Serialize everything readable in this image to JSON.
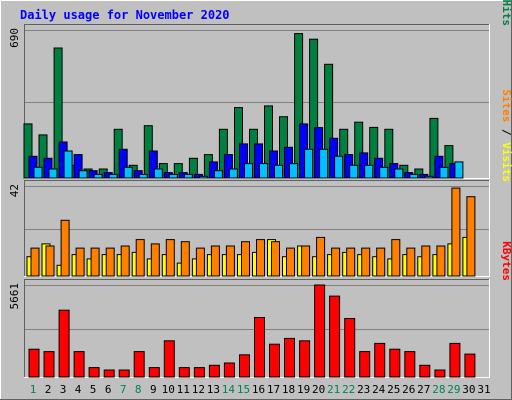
{
  "title": "Daily usage for November 2020",
  "colors": {
    "background": "#c0c0c0",
    "title": "#0000ff",
    "grid": "#808080",
    "hits": "#008040",
    "files": "#0000ff",
    "pages": "#00c0ff",
    "visits": "#ffff00",
    "sites": "#ff8000",
    "kbytes": "#ff0000",
    "weekend_label": "#00805c",
    "weekday_label": "#000000"
  },
  "chart_data": [
    {
      "type": "bar",
      "title": "",
      "ylabel": "Pages / Files / Hits",
      "ymax_label": "690",
      "ylim": [
        0,
        690
      ],
      "categories": [
        "1",
        "2",
        "3",
        "4",
        "5",
        "6",
        "7",
        "8",
        "9",
        "10",
        "11",
        "12",
        "13",
        "14",
        "15",
        "16",
        "17",
        "18",
        "19",
        "20",
        "21",
        "22",
        "23",
        "24",
        "25",
        "26",
        "27",
        "28",
        "29",
        "30"
      ],
      "series": [
        {
          "name": "Hits",
          "values": [
            252,
            201,
            606,
            59,
            42,
            42,
            227,
            59,
            244,
            67,
            67,
            92,
            109,
            227,
            328,
            227,
            336,
            286,
            673,
            647,
            530,
            227,
            260,
            236,
            227,
            59,
            42,
            278,
            151,
            0
          ]
        },
        {
          "name": "Files",
          "values": [
            101,
            92,
            168,
            109,
            34,
            25,
            134,
            34,
            126,
            25,
            25,
            17,
            75,
            109,
            159,
            159,
            126,
            143,
            252,
            235,
            185,
            109,
            117,
            92,
            67,
            25,
            17,
            101,
            67,
            0
          ]
        },
        {
          "name": "Pages",
          "values": [
            50,
            42,
            126,
            34,
            17,
            17,
            50,
            17,
            42,
            17,
            17,
            8,
            34,
            42,
            67,
            67,
            59,
            67,
            134,
            134,
            101,
            59,
            59,
            50,
            42,
            17,
            8,
            50,
            75,
            0
          ]
        }
      ]
    },
    {
      "type": "bar",
      "title": "",
      "ylabel": "Sites / Visits",
      "ymax_label": "42",
      "ylim": [
        0,
        42
      ],
      "categories": [
        "1",
        "2",
        "3",
        "4",
        "5",
        "6",
        "7",
        "8",
        "9",
        "10",
        "11",
        "12",
        "13",
        "14",
        "15",
        "16",
        "17",
        "18",
        "19",
        "20",
        "21",
        "22",
        "23",
        "24",
        "25",
        "26",
        "27",
        "28",
        "29",
        "30"
      ],
      "series": [
        {
          "name": "Visits",
          "values": [
            9,
            15,
            5,
            10,
            8,
            10,
            10,
            11,
            8,
            10,
            6,
            8,
            10,
            10,
            10,
            11,
            17,
            9,
            14,
            9,
            10,
            11,
            10,
            9,
            8,
            10,
            9,
            10,
            15,
            18
          ]
        },
        {
          "name": "Sites",
          "values": [
            13,
            14,
            26,
            13,
            13,
            13,
            14,
            17,
            15,
            17,
            16,
            13,
            14,
            14,
            16,
            17,
            16,
            13,
            14,
            18,
            13,
            13,
            13,
            13,
            17,
            13,
            14,
            14,
            41,
            37
          ]
        }
      ]
    },
    {
      "type": "bar",
      "title": "",
      "ylabel": "KBytes",
      "ymax_label": "5661",
      "ylim": [
        0,
        5661
      ],
      "categories": [
        "1",
        "2",
        "3",
        "4",
        "5",
        "6",
        "7",
        "8",
        "9",
        "10",
        "11",
        "12",
        "13",
        "14",
        "15",
        "16",
        "17",
        "18",
        "19",
        "20",
        "21",
        "22",
        "23",
        "24",
        "25",
        "26",
        "27",
        "28",
        "29",
        "30"
      ],
      "series": [
        {
          "name": "KBytes",
          "values": [
            1710,
            1566,
            4110,
            1566,
            576,
            432,
            432,
            1566,
            576,
            2226,
            576,
            576,
            720,
            864,
            1368,
            3660,
            2016,
            2376,
            2226,
            5661,
            4980,
            3600,
            1566,
            2070,
            1710,
            1566,
            720,
            432,
            2070,
            1410
          ]
        }
      ]
    }
  ],
  "x_labels": [
    "1",
    "2",
    "3",
    "4",
    "5",
    "6",
    "7",
    "8",
    "9",
    "10",
    "11",
    "12",
    "13",
    "14",
    "15",
    "16",
    "17",
    "18",
    "19",
    "20",
    "21",
    "22",
    "23",
    "24",
    "25",
    "26",
    "27",
    "28",
    "29",
    "30",
    "31"
  ],
  "weekend_days": [
    "1",
    "7",
    "8",
    "14",
    "15",
    "21",
    "22",
    "28",
    "29"
  ]
}
